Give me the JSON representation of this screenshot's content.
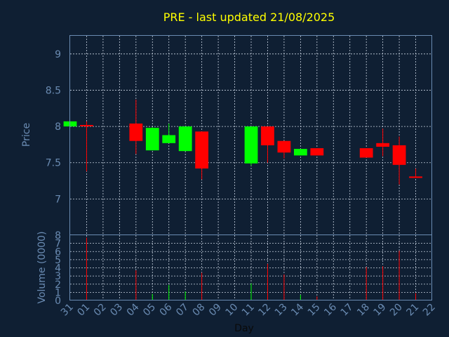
{
  "chart_data": {
    "type": "candlestick",
    "title": "PRE - last updated 21/08/2025",
    "price_panel": {
      "ylabel": "Price",
      "ylim": [
        6.5,
        9.25
      ],
      "yticks": [
        "7",
        "7.5",
        "8",
        "8.5",
        "9"
      ],
      "grid": true
    },
    "volume_panel": {
      "ylabel": "Volume (0000)",
      "ylim": [
        0,
        8
      ],
      "yticks": [
        "0",
        "1",
        "2",
        "3",
        "4",
        "5",
        "6",
        "7",
        "8"
      ],
      "grid": true
    },
    "xlabel": "Day",
    "xticks": [
      "31",
      "01",
      "02",
      "03",
      "04",
      "05",
      "06",
      "07",
      "08",
      "09",
      "10",
      "11",
      "12",
      "13",
      "14",
      "15",
      "16",
      "17",
      "18",
      "19",
      "20",
      "21",
      "22"
    ],
    "candles": [
      {
        "day": "31",
        "open": 8.0,
        "high": 8.07,
        "low": 8.0,
        "close": 8.07,
        "volume": 0
      },
      {
        "day": "01",
        "open": 8.02,
        "high": 8.07,
        "low": 7.38,
        "close": 8.01,
        "volume": 7.7
      },
      {
        "day": "04",
        "open": 8.04,
        "high": 8.37,
        "low": 7.62,
        "close": 7.8,
        "volume": 3.7
      },
      {
        "day": "05",
        "open": 7.67,
        "high": 7.99,
        "low": 7.67,
        "close": 7.98,
        "volume": 0.8
      },
      {
        "day": "06",
        "open": 7.77,
        "high": 8.04,
        "low": 7.77,
        "close": 7.88,
        "volume": 1.9
      },
      {
        "day": "07",
        "open": 7.66,
        "high": 8.0,
        "low": 7.66,
        "close": 8.0,
        "volume": 1.1
      },
      {
        "day": "08",
        "open": 7.93,
        "high": 7.93,
        "low": 7.27,
        "close": 7.42,
        "volume": 3.4
      },
      {
        "day": "11",
        "open": 7.49,
        "high": 8.0,
        "low": 7.46,
        "close": 8.0,
        "volume": 2.1
      },
      {
        "day": "12",
        "open": 8.0,
        "high": 8.0,
        "low": 7.5,
        "close": 7.74,
        "volume": 4.5
      },
      {
        "day": "13",
        "open": 7.8,
        "high": 7.8,
        "low": 7.56,
        "close": 7.64,
        "volume": 3.2
      },
      {
        "day": "14",
        "open": 7.6,
        "high": 7.69,
        "low": 7.6,
        "close": 7.69,
        "volume": 0.7
      },
      {
        "day": "15",
        "open": 7.7,
        "high": 7.7,
        "low": 7.6,
        "close": 7.6,
        "volume": 0.5
      },
      {
        "day": "18",
        "open": 7.7,
        "high": 7.7,
        "low": 7.57,
        "close": 7.57,
        "volume": 4.1
      },
      {
        "day": "19",
        "open": 7.77,
        "high": 7.97,
        "low": 7.59,
        "close": 7.72,
        "volume": 4.2
      },
      {
        "day": "20",
        "open": 7.74,
        "high": 7.86,
        "low": 7.2,
        "close": 7.47,
        "volume": 6.1
      },
      {
        "day": "21",
        "open": 7.31,
        "high": 7.42,
        "low": 7.29,
        "close": 7.29,
        "volume": 0.9
      }
    ],
    "colors": {
      "up": "#00ff00",
      "down": "#ff0000",
      "background": "#0f1f33",
      "axis": "#6a8bb2",
      "title": "#ffff00",
      "grid": "#c8d2e0"
    }
  }
}
